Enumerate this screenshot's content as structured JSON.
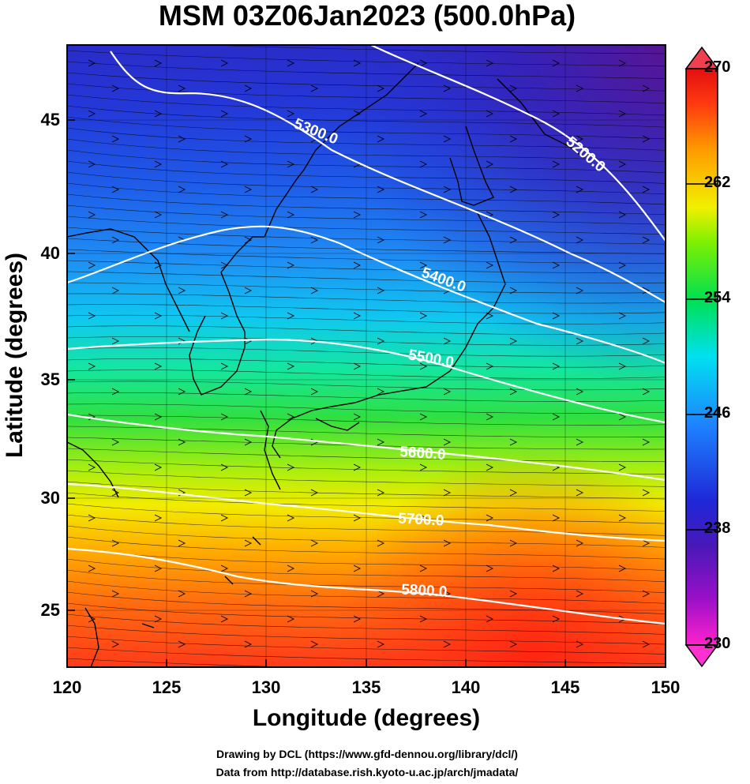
{
  "title": "MSM 03Z06Jan2023 (500.0hPa)",
  "x_axis": {
    "label": "Longitude (degrees)",
    "ticks": [
      "120",
      "125",
      "130",
      "135",
      "140",
      "145",
      "150"
    ],
    "range": [
      120,
      150
    ]
  },
  "y_axis": {
    "label": "Latitude  (degrees)",
    "ticks": [
      "25",
      "30",
      "35",
      "40",
      "45"
    ],
    "range": [
      22.4,
      48
    ]
  },
  "colorbar": {
    "ticks": [
      "270",
      "262",
      "254",
      "246",
      "238",
      "230"
    ],
    "range": [
      230,
      270
    ],
    "colors": [
      "#ff00cc",
      "#7a0fb4",
      "#2222c8",
      "#1e7bff",
      "#00d8ff",
      "#00e060",
      "#7ff000",
      "#f6f000",
      "#ffa000",
      "#ff3000",
      "#e81010"
    ]
  },
  "contours": [
    {
      "label": "5200.0"
    },
    {
      "label": "5300.0"
    },
    {
      "label": "5400.0"
    },
    {
      "label": "5500.0"
    },
    {
      "label": "5600.0"
    },
    {
      "label": "5700.0"
    },
    {
      "label": "5800.0"
    }
  ],
  "credits": {
    "line1": "Drawing by DCL (https://www.gfd-dennou.org/library/dcl/)",
    "line2": "Data from http://database.rish.kyoto-u.ac.jp/arch/jmadata/"
  }
}
